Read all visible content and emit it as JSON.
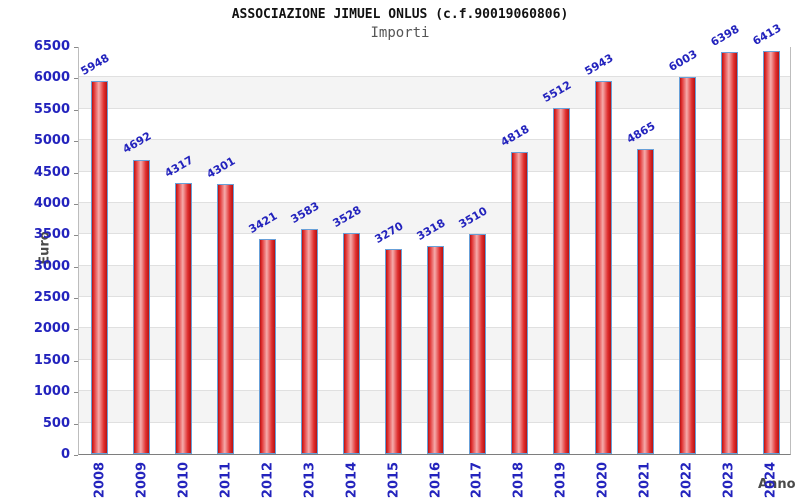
{
  "chart_data": {
    "type": "bar",
    "title": "ASSOCIAZIONE JIMUEL ONLUS (c.f.90019060806)",
    "subtitle": "Importi",
    "xlabel": "Anno",
    "ylabel": "Euro",
    "categories": [
      "2008",
      "2009",
      "2010",
      "2011",
      "2012",
      "2013",
      "2014",
      "2015",
      "2016",
      "2017",
      "2018",
      "2019",
      "2020",
      "2021",
      "2022",
      "2023",
      "2024"
    ],
    "values": [
      5948,
      4692,
      4317,
      4301,
      3421,
      3583,
      3528,
      3270,
      3318,
      3510,
      4818,
      5512,
      5943,
      4865,
      6003,
      6398,
      6413
    ],
    "ylim": [
      0,
      6500
    ],
    "ytick_step": 500,
    "yticks": [
      0,
      500,
      1000,
      1500,
      2000,
      2500,
      3000,
      3500,
      4000,
      4500,
      5000,
      5500,
      6000,
      6500
    ],
    "legend": "none",
    "grid": "horizontal-bands",
    "colors": {
      "bar_edge": "#b81111",
      "bar_bright": "#e03030",
      "bar_mid": "#f5aaaa",
      "bar_border": "#68a0d8",
      "label_blue": "#2323bd",
      "band_gray": "#f4f4f4",
      "gridline": "#e0e0e0",
      "title_text": "#111111",
      "secondary_text": "#4a4a4a"
    }
  }
}
